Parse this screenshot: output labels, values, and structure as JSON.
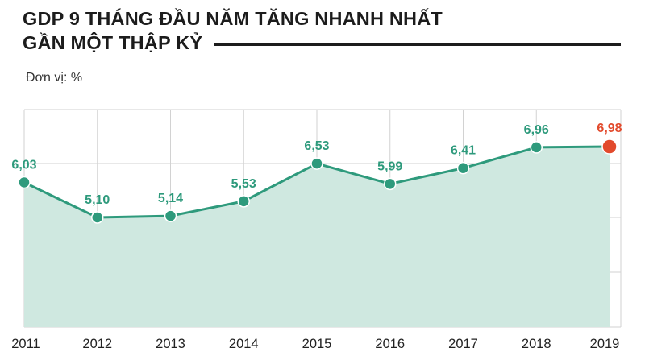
{
  "title": {
    "line1": "GDP 9 THÁNG ĐẦU NĂM TĂNG NHANH NHẤT",
    "line2": "GẦN MỘT THẬP KỶ"
  },
  "unit_label": "Đơn vị: %",
  "colors": {
    "line": "#2e9a7c",
    "fill": "#cfe8e0",
    "highlight": "#e24a2c",
    "grid": "#d2d2d2",
    "text": "#1c1c1c"
  },
  "chart_data": {
    "type": "area",
    "categories": [
      "2011",
      "2012",
      "2013",
      "2014",
      "2015",
      "2016",
      "2017",
      "2018",
      "2019"
    ],
    "values": [
      6.03,
      5.1,
      5.14,
      5.53,
      6.53,
      5.99,
      6.41,
      6.96,
      6.98
    ],
    "value_labels": [
      "6,03",
      "5,10",
      "5,14",
      "5,53",
      "6,53",
      "5,99",
      "6,41",
      "6,96",
      "6,98"
    ],
    "highlight_index": 8,
    "title": "GDP 9 THÁNG ĐẦU NĂM TĂNG NHANH NHẤT GẦN MỘT THẬP KỶ",
    "ylabel": "Đơn vị: %",
    "xlabel": "",
    "grid": true,
    "y_axis_labels_shown": false
  }
}
